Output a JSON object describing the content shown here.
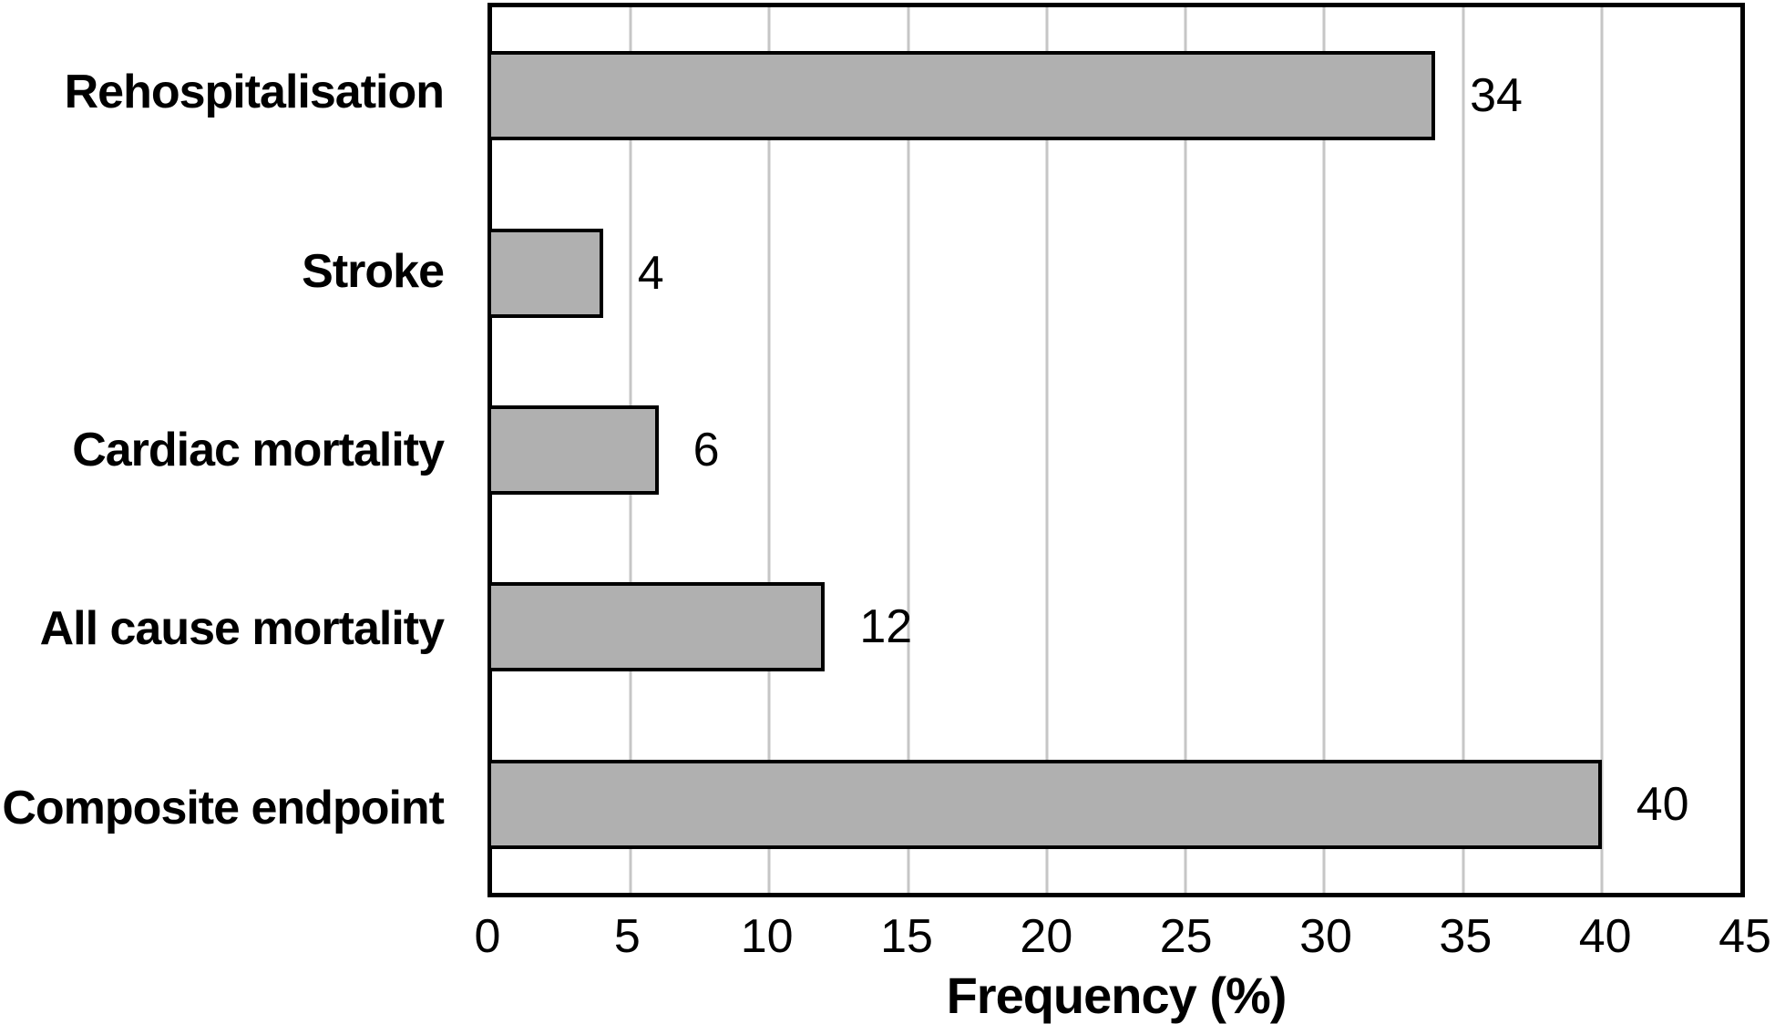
{
  "chart_data": {
    "type": "bar",
    "orientation": "horizontal",
    "categories": [
      "Rehospitalisation",
      "Stroke",
      "Cardiac mortality",
      "All cause mortality",
      "Composite endpoint"
    ],
    "values": [
      34,
      4,
      6,
      12,
      40
    ],
    "value_labels": [
      "34",
      "4",
      "6",
      "12",
      "40"
    ],
    "title": "",
    "xlabel": "Frequency (%)",
    "ylabel": "",
    "xlim": [
      0,
      45
    ],
    "xticks": [
      0,
      5,
      10,
      15,
      20,
      25,
      30,
      35,
      40,
      45
    ],
    "grid": true,
    "legend": "none",
    "colors": {
      "bar_fill": "#b0b0b0",
      "bar_border": "#000000",
      "gridline": "#c6c6c6",
      "axis_border": "#000000",
      "text": "#000000",
      "background": "#ffffff"
    }
  }
}
